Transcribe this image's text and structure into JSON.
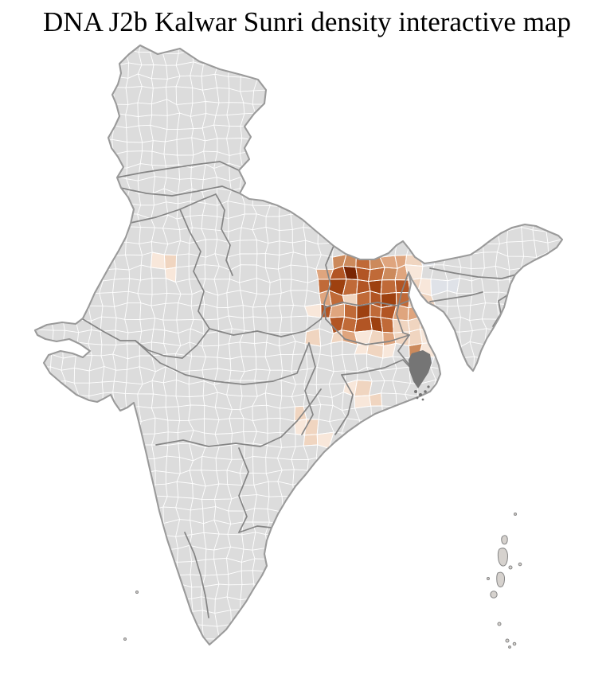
{
  "title": "DNA J2b Kalwar Sunri density interactive map",
  "map": {
    "kind": "choropleth",
    "colors": {
      "background": "#ffffff",
      "land": "#dcdcdc",
      "district_border": "#ffffff",
      "state_border": "#858585",
      "country_outline": "#9a9a9a",
      "delta_dark": "#757575",
      "island": "#d6d2ce"
    },
    "density_palette": {
      "d0": "#7a2604",
      "d1": "#9e4110",
      "d2": "#b25524",
      "d3": "#c06a38",
      "d4": "#cc8a5c",
      "d5": "#dfa57e",
      "d7": "#f0d5c0",
      "d8": "#f8e7da",
      "bg": "#dfe2e8"
    },
    "cell_size": 16,
    "density_cells": [
      [
        26,
        20,
        "d4"
      ],
      [
        27,
        20,
        "d4"
      ],
      [
        28,
        20,
        "d3"
      ],
      [
        29,
        20,
        "d4"
      ],
      [
        30,
        20,
        "d5"
      ],
      [
        31,
        20,
        "d5"
      ],
      [
        32,
        20,
        "d7"
      ],
      [
        33,
        20,
        "bg"
      ],
      [
        25,
        21,
        "d5"
      ],
      [
        26,
        21,
        "d2"
      ],
      [
        27,
        21,
        "d0"
      ],
      [
        28,
        21,
        "d2"
      ],
      [
        29,
        21,
        "d3"
      ],
      [
        30,
        21,
        "d4"
      ],
      [
        31,
        21,
        "d5"
      ],
      [
        32,
        21,
        "d8"
      ],
      [
        25,
        22,
        "d3"
      ],
      [
        26,
        22,
        "d1"
      ],
      [
        27,
        22,
        "d3"
      ],
      [
        28,
        22,
        "d2"
      ],
      [
        29,
        22,
        "d1"
      ],
      [
        30,
        22,
        "d3"
      ],
      [
        31,
        22,
        "d2"
      ],
      [
        32,
        22,
        "d7"
      ],
      [
        33,
        22,
        "d8"
      ],
      [
        34,
        22,
        "bg"
      ],
      [
        35,
        22,
        "bg"
      ],
      [
        25,
        23,
        "d5"
      ],
      [
        26,
        23,
        "d3"
      ],
      [
        27,
        23,
        "d7"
      ],
      [
        28,
        23,
        "d3"
      ],
      [
        29,
        23,
        "d2"
      ],
      [
        30,
        23,
        "d1"
      ],
      [
        31,
        23,
        "d3"
      ],
      [
        32,
        23,
        "d7"
      ],
      [
        33,
        23,
        "d7"
      ],
      [
        25,
        24,
        "d2"
      ],
      [
        26,
        24,
        "d5"
      ],
      [
        27,
        24,
        "d3"
      ],
      [
        28,
        24,
        "d1"
      ],
      [
        29,
        24,
        "d3"
      ],
      [
        30,
        24,
        "d2"
      ],
      [
        31,
        24,
        "d5"
      ],
      [
        32,
        24,
        "d5"
      ],
      [
        33,
        24,
        "d8"
      ],
      [
        26,
        25,
        "d2"
      ],
      [
        27,
        25,
        "d3"
      ],
      [
        28,
        25,
        "d2"
      ],
      [
        29,
        25,
        "d1"
      ],
      [
        30,
        25,
        "d3"
      ],
      [
        31,
        25,
        "d7"
      ],
      [
        32,
        25,
        "d7"
      ],
      [
        33,
        25,
        "d7"
      ],
      [
        26,
        26,
        "d7"
      ],
      [
        27,
        26,
        "d5"
      ],
      [
        28,
        26,
        "d8"
      ],
      [
        29,
        26,
        "d7"
      ],
      [
        30,
        26,
        "d5"
      ],
      [
        31,
        26,
        "d7"
      ],
      [
        32,
        26,
        "d7"
      ],
      [
        33,
        26,
        "d8"
      ],
      [
        28,
        27,
        "d8"
      ],
      [
        29,
        27,
        "d7"
      ],
      [
        30,
        27,
        "d8"
      ],
      [
        32,
        27,
        "d4"
      ],
      [
        33,
        27,
        "d8"
      ],
      [
        32,
        28,
        "d7"
      ],
      [
        33,
        28,
        "bg"
      ],
      [
        12,
        20,
        "d8"
      ],
      [
        13,
        20,
        "d7"
      ],
      [
        13,
        21,
        "d8"
      ],
      [
        24,
        24,
        "d8"
      ],
      [
        24,
        26,
        "d7"
      ],
      [
        43,
        20,
        "d7"
      ],
      [
        27,
        30,
        "d8"
      ],
      [
        28,
        30,
        "d7"
      ],
      [
        28,
        31,
        "d8"
      ],
      [
        29,
        31,
        "d7"
      ],
      [
        23,
        32,
        "d7"
      ],
      [
        23,
        33,
        "d8"
      ],
      [
        24,
        33,
        "d7"
      ],
      [
        25,
        34,
        "d8"
      ],
      [
        24,
        34,
        "d7"
      ]
    ]
  }
}
